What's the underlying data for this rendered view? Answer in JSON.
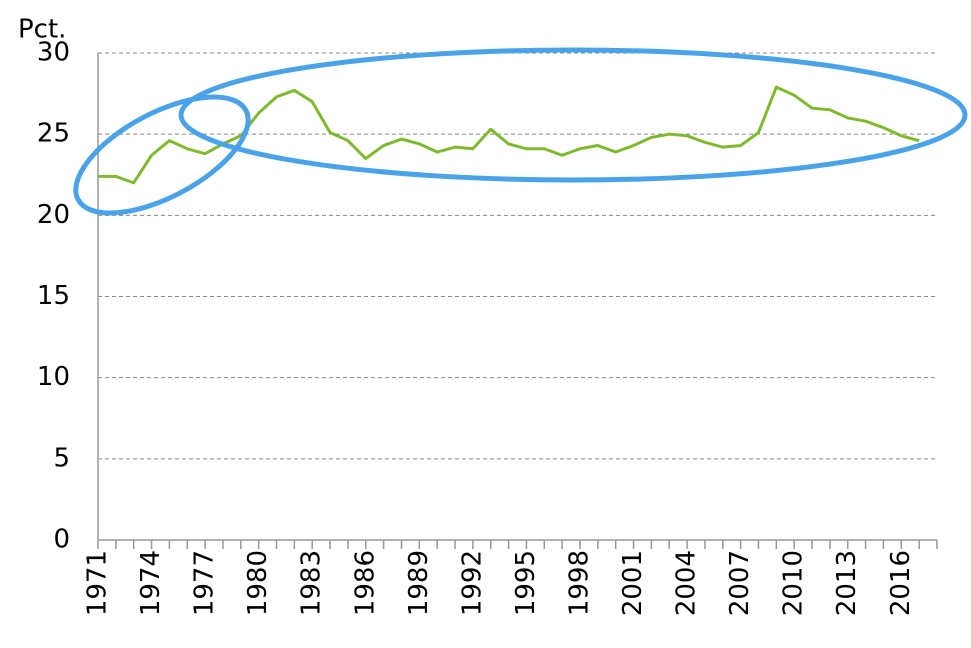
{
  "chart_data": {
    "type": "line",
    "y_label": "Pct.",
    "categories": [
      "1971",
      null,
      null,
      "1974",
      null,
      null,
      "1977",
      null,
      null,
      "1980",
      null,
      null,
      "1983",
      null,
      null,
      "1986",
      null,
      null,
      "1989",
      null,
      null,
      "1992",
      null,
      null,
      "1995",
      null,
      null,
      "1998",
      null,
      null,
      "2001",
      null,
      null,
      "2004",
      null,
      null,
      "2007",
      null,
      null,
      "2010",
      null,
      null,
      "2013",
      null,
      null,
      "2016",
      null,
      null
    ],
    "series": [
      {
        "color": "#7fba2e",
        "values": [
          22.4,
          22.4,
          22.0,
          23.7,
          24.6,
          24.1,
          23.8,
          24.4,
          24.9,
          26.3,
          27.3,
          27.7,
          27.0,
          25.1,
          24.6,
          23.5,
          24.3,
          24.7,
          24.4,
          23.9,
          24.2,
          24.1,
          25.3,
          24.4,
          24.1,
          24.1,
          23.7,
          24.1,
          24.3,
          23.9,
          24.3,
          24.8,
          25.0,
          24.9,
          24.5,
          24.2,
          24.3,
          25.1,
          27.9,
          27.4,
          26.6,
          26.5,
          26.0,
          25.8,
          25.4,
          24.9,
          24.6,
          null
        ]
      }
    ],
    "ylim": [
      0,
      30
    ],
    "yticks": [
      0,
      5,
      10,
      15,
      20,
      25,
      30
    ],
    "grid": true
  }
}
